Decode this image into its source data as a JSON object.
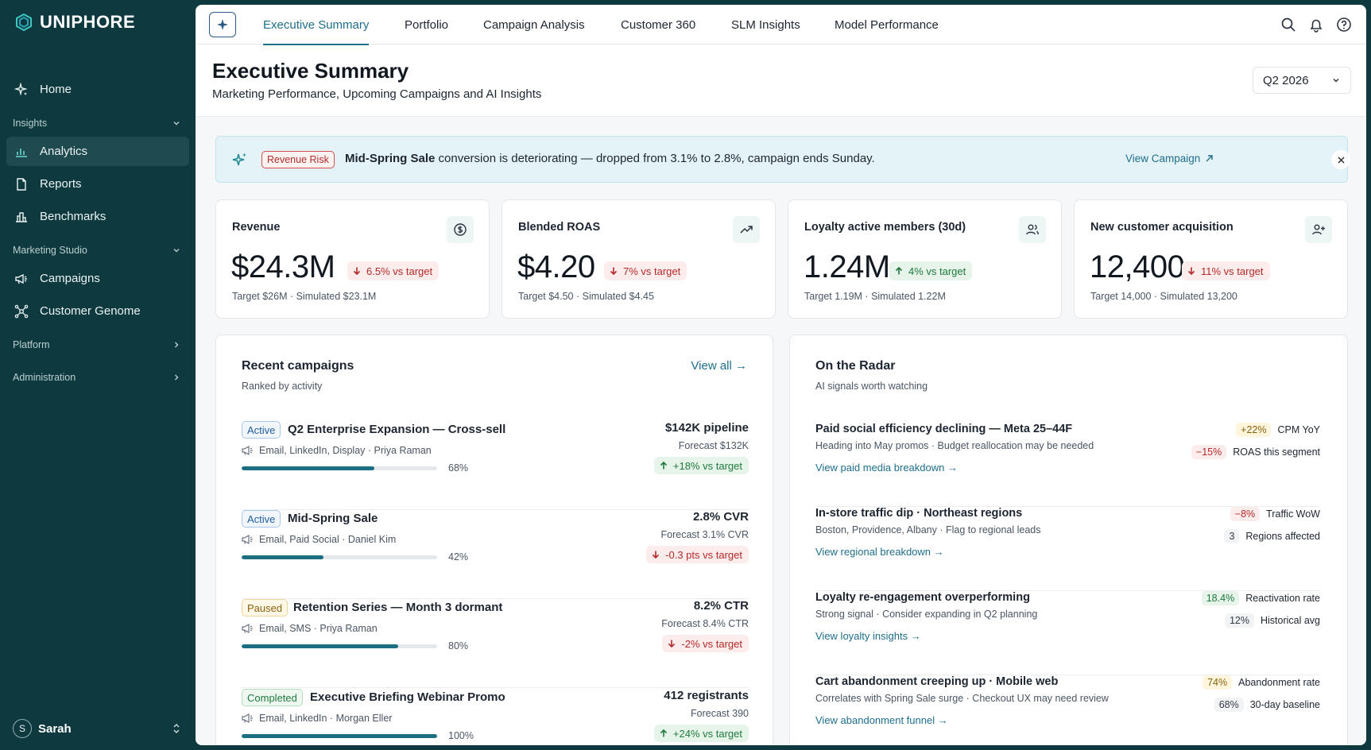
{
  "brand": {
    "name": "UNIPHORE"
  },
  "sidebar": {
    "home": "Home",
    "sections": [
      {
        "label": "Insights",
        "items": [
          "Analytics",
          "Reports",
          "Benchmarks"
        ]
      },
      {
        "label": "Marketing Studio",
        "items": [
          "Campaigns",
          "Customer Genome"
        ]
      },
      {
        "label": "Platform"
      },
      {
        "label": "Administration"
      }
    ],
    "user": {
      "initial": "S",
      "name": "Sarah"
    }
  },
  "topnav": {
    "tabs": [
      "Executive Summary",
      "Portfolio",
      "Campaign Analysis",
      "Customer 360",
      "SLM Insights",
      "Model Performance"
    ],
    "active_tab": "Executive Summary"
  },
  "header": {
    "title": "Executive Summary",
    "subtitle": "Marketing Performance, Upcoming Campaigns and AI Insights",
    "period": "Q2 2026"
  },
  "alert": {
    "badge": "Revenue Risk",
    "subject": "Mid-Spring Sale",
    "message": "conversion is deteriorating — dropped from 3.1% to 2.8%, campaign ends Sunday.",
    "link": "View Campaign"
  },
  "kpis": [
    {
      "label": "Revenue",
      "icon": "dollar-icon",
      "value": "$24.3M",
      "delta": "6.5% vs target",
      "direction": "down",
      "footer": "Target $26M · Simulated $23.1M"
    },
    {
      "label": "Blended ROAS",
      "icon": "trend-up-icon",
      "value": "$4.20",
      "delta": "7% vs target",
      "direction": "down",
      "footer": "Target $4.50 · Simulated $4.45"
    },
    {
      "label": "Loyalty active members (30d)",
      "icon": "users-icon",
      "value": "1.24M",
      "delta": "4% vs target",
      "direction": "up",
      "footer": "Target 1.19M · Simulated 1.22M"
    },
    {
      "label": "New customer acquisition",
      "icon": "user-plus-icon",
      "value": "12,400",
      "delta": "11% vs target",
      "direction": "down",
      "footer": "Target 14,000 · Simulated 13,200"
    }
  ],
  "campaigns": {
    "title": "Recent campaigns",
    "subtitle": "Ranked by activity",
    "view_all": "View all →",
    "rows": [
      {
        "status": "Active",
        "name": "Q2 Enterprise Expansion — Cross-sell",
        "channels": "Email, LinkedIn, Display · Priya Raman",
        "progress": 68,
        "progress_label": "68%",
        "metric": "$142K pipeline",
        "forecast": "Forecast $132K",
        "delta": "+18% vs target",
        "direction": "up"
      },
      {
        "status": "Active",
        "name": "Mid-Spring Sale",
        "channels": "Email, Paid Social · Daniel Kim",
        "progress": 42,
        "progress_label": "42%",
        "metric": "2.8% CVR",
        "forecast": "Forecast 3.1% CVR",
        "delta": "-0.3 pts vs target",
        "direction": "down"
      },
      {
        "status": "Paused",
        "name": "Retention Series — Month 3 dormant",
        "channels": "Email, SMS · Priya Raman",
        "progress": 80,
        "progress_label": "80%",
        "metric": "8.2% CTR",
        "forecast": "Forecast 8.4% CTR",
        "delta": "-2% vs target",
        "direction": "down"
      },
      {
        "status": "Completed",
        "name": "Executive Briefing Webinar Promo",
        "channels": "Email, LinkedIn · Morgan Eller",
        "progress": 100,
        "progress_label": "100%",
        "metric": "412 registrants",
        "forecast": "Forecast 390",
        "delta": "+24% vs target",
        "direction": "up"
      }
    ]
  },
  "radar": {
    "title": "On the Radar",
    "subtitle": "AI signals worth watching",
    "rows": [
      {
        "title": "Paid social efficiency declining — Meta 25–44F",
        "desc": "Heading into May promos · Budget reallocation may be needed",
        "link": "View paid media breakdown →",
        "signals": [
          {
            "value": "+22%",
            "tone": "warn",
            "label": "CPM YoY"
          },
          {
            "value": "−15%",
            "tone": "bad",
            "label": "ROAS this segment"
          }
        ]
      },
      {
        "title": "In-store traffic dip · Northeast regions",
        "desc": "Boston, Providence, Albany · Flag to regional leads",
        "link": "View regional breakdown →",
        "signals": [
          {
            "value": "−8%",
            "tone": "bad",
            "label": "Traffic WoW"
          },
          {
            "value": "3",
            "tone": "neutral",
            "label": "Regions affected"
          }
        ]
      },
      {
        "title": "Loyalty re-engagement overperforming",
        "desc": "Strong signal · Consider expanding in Q2 planning",
        "link": "View loyalty insights →",
        "signals": [
          {
            "value": "18.4%",
            "tone": "good",
            "label": "Reactivation rate"
          },
          {
            "value": "12%",
            "tone": "neutral",
            "label": "Historical avg"
          }
        ]
      },
      {
        "title": "Cart abandonment creeping up · Mobile web",
        "desc": "Correlates with Spring Sale surge · Checkout UX may need review",
        "link": "View abandonment funnel →",
        "signals": [
          {
            "value": "74%",
            "tone": "warn",
            "label": "Abandonment rate"
          },
          {
            "value": "68%",
            "tone": "neutral",
            "label": "30-day baseline"
          }
        ]
      }
    ]
  }
}
